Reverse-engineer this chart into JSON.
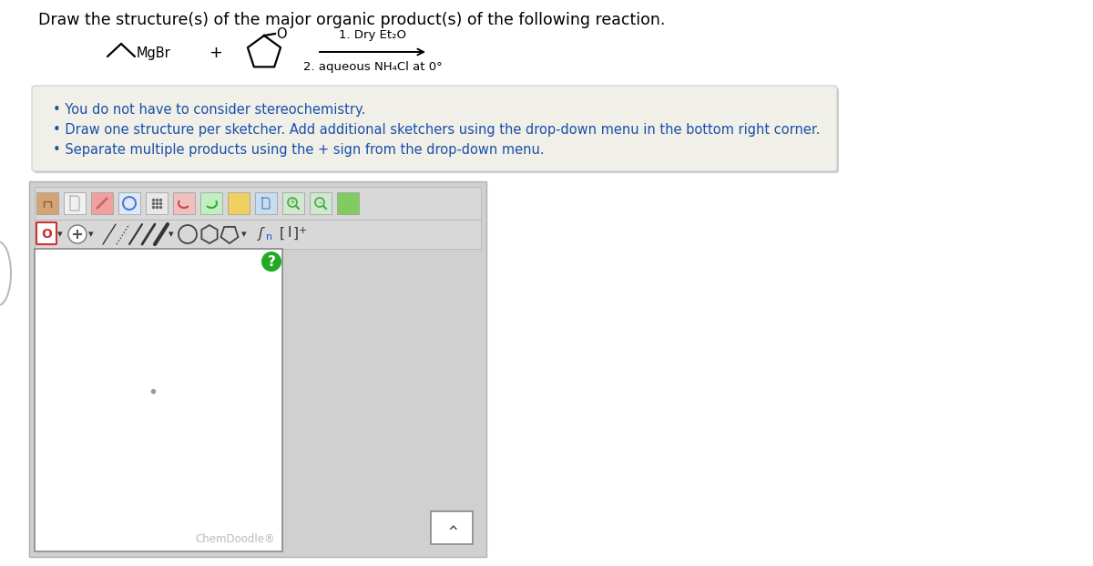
{
  "title": "Draw the structure(s) of the major organic product(s) of the following reaction.",
  "title_color": "#000000",
  "title_fontsize": 12.5,
  "page_bg": "#ffffff",
  "outer_bg": "#f0f0f0",
  "reaction_conditions": [
    "1. Dry Et₂O",
    "2. aqueous NH₄Cl at 0°"
  ],
  "bullet_text_1": "You do not have to consider stereochemistry.",
  "bullet_text_2": "Draw one structure per sketcher. Add additional sketchers using the drop-down menu in the bottom right corner.",
  "bullet_text_3": "Separate multiple products using the + sign from the drop-down menu.",
  "bullet_color": "#1a4faa",
  "bullet_box_bg": "#f0f0e8",
  "bullet_box_border": "#cccccc",
  "chemdoodle_text": "ChemDoodle®",
  "chemdoodle_color": "#bbbbbb",
  "sketcher_bg": "#ffffff",
  "sketcher_border": "#888888",
  "toolbar_bg": "#d8d8d8",
  "panel_outer_bg": "#d0d0d0",
  "green_color": "#22aa22",
  "question_mark": "?",
  "MgBr_label": "MgBr",
  "O_label": "O",
  "plus_sign": "+",
  "dropdown_border": "#888888"
}
